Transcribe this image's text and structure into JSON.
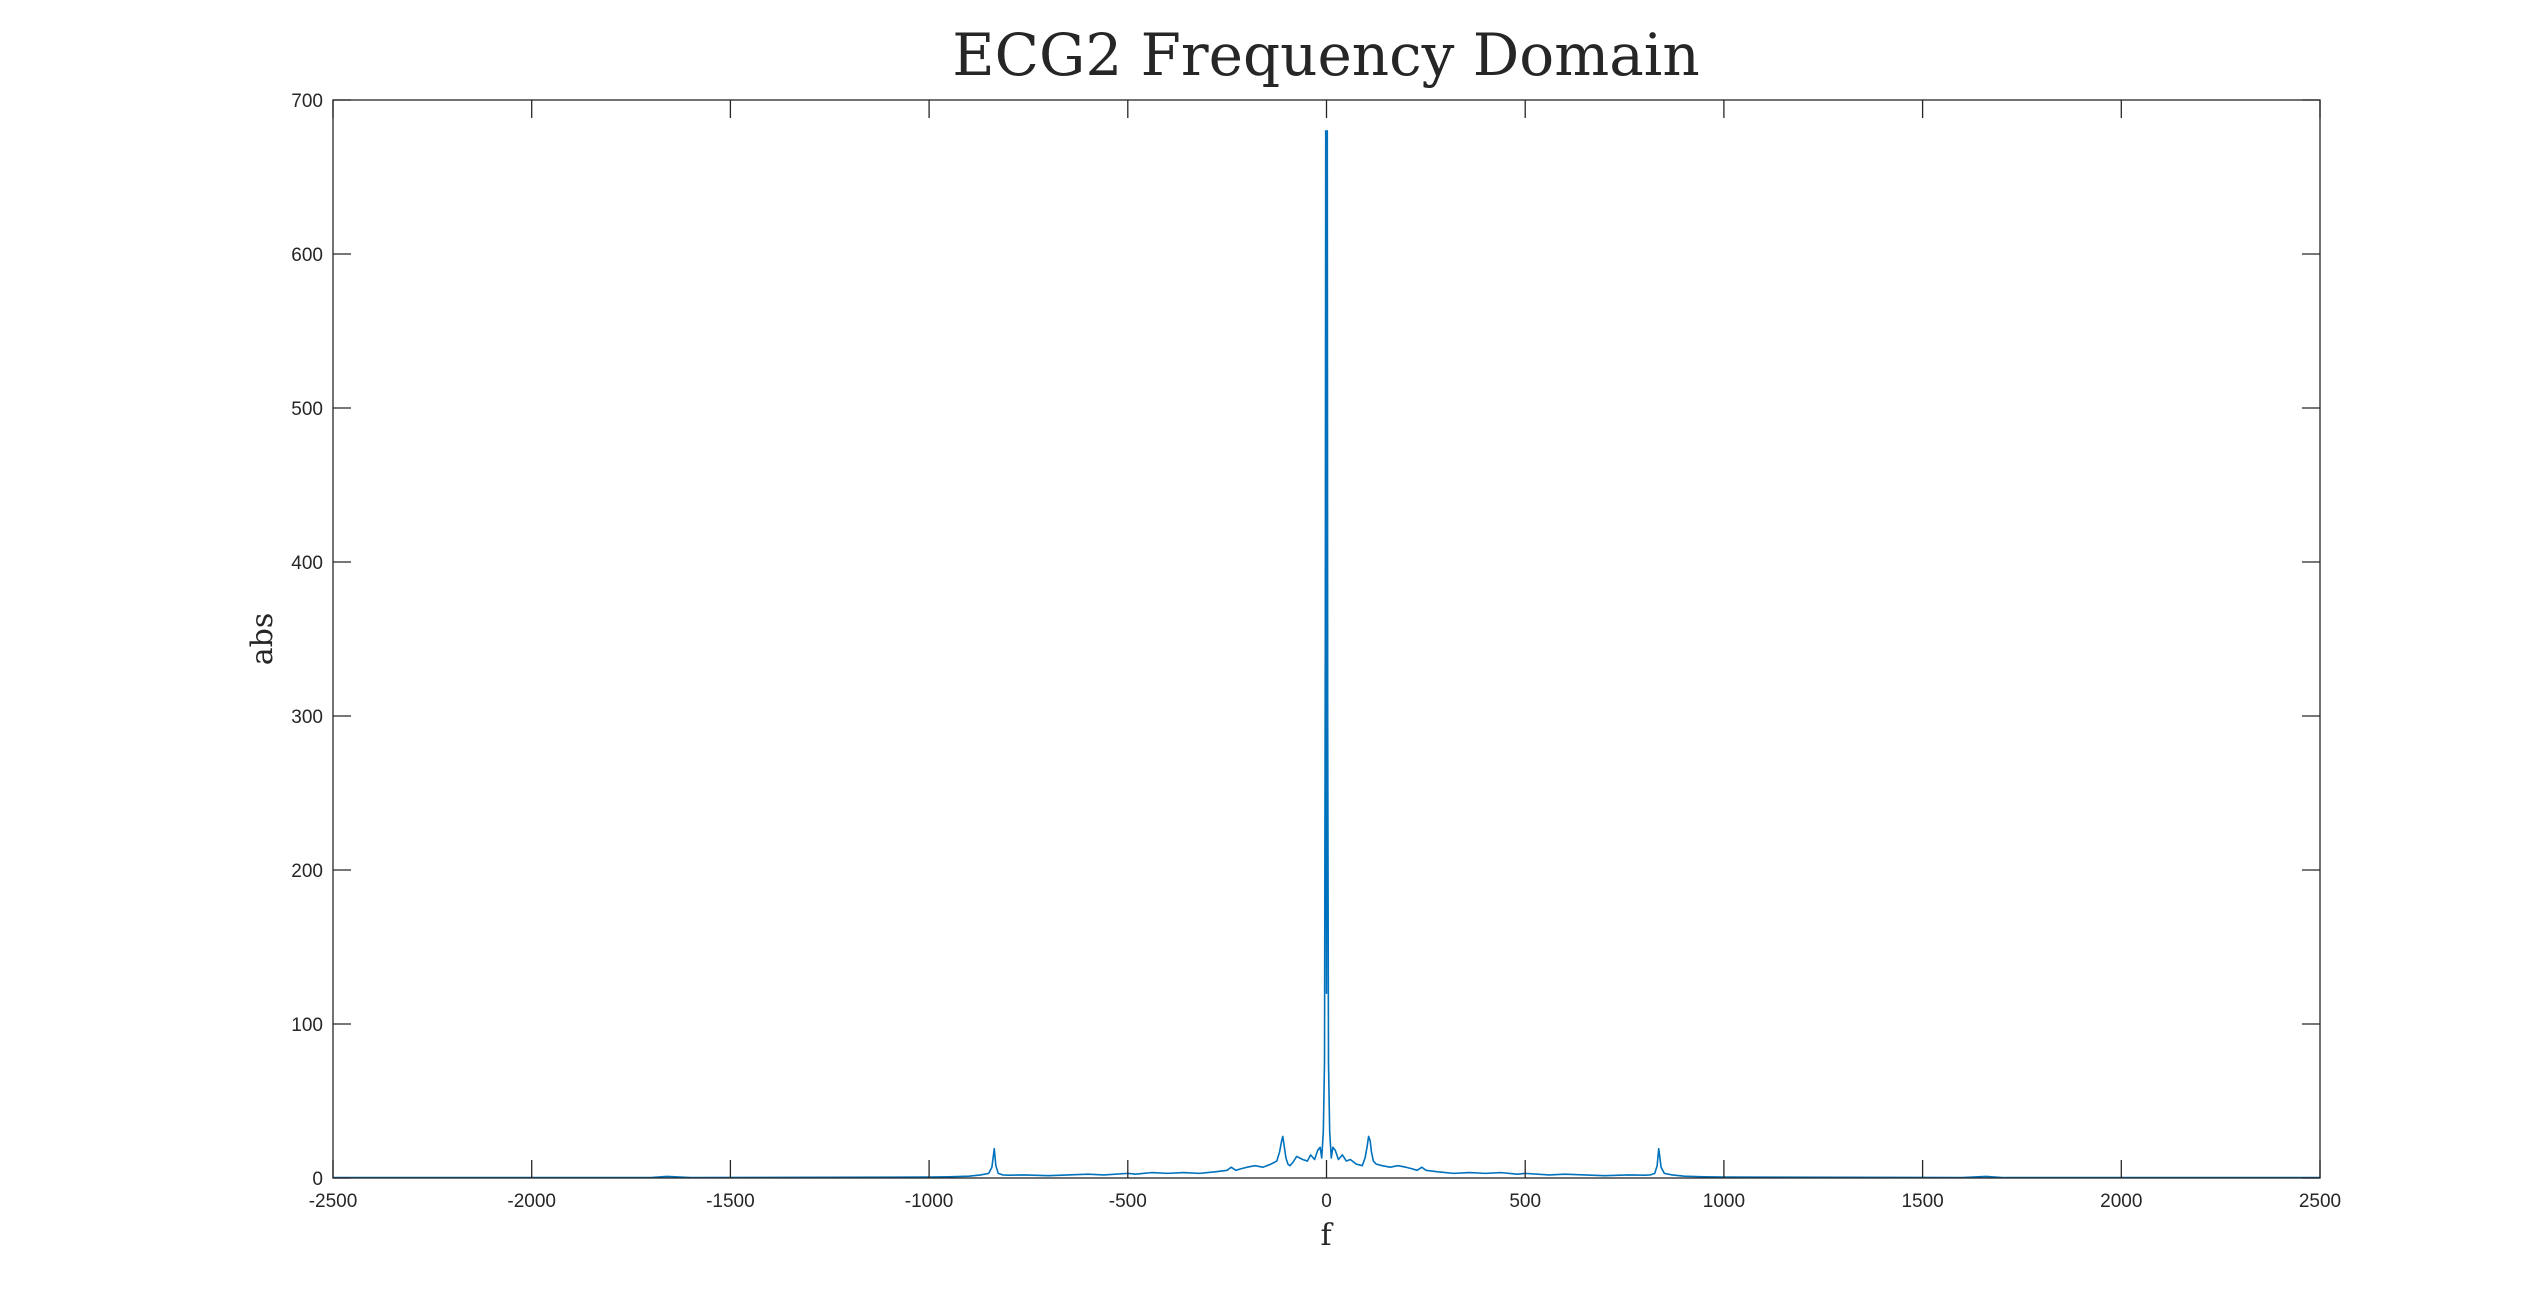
{
  "chart_data": {
    "type": "line",
    "title": "ECG2 Frequency Domain",
    "xlabel": "f",
    "ylabel": "abs",
    "xlim": [
      -2500,
      2500
    ],
    "ylim": [
      0,
      700
    ],
    "xticks": [
      -2500,
      -2000,
      -1500,
      -1000,
      -500,
      0,
      500,
      1000,
      1500,
      2000,
      2500
    ],
    "yticks": [
      0,
      100,
      200,
      300,
      400,
      500,
      600,
      700
    ],
    "grid": false,
    "color": "#0072BD",
    "series": [
      {
        "x": [
          -2500,
          -1700,
          -1660,
          -1600,
          -1000,
          -950,
          -900,
          -870,
          -850,
          -842,
          -836,
          -832,
          -826,
          -815,
          -800,
          -760,
          -700,
          -650,
          -600,
          -560,
          -500,
          -480,
          -440,
          -400,
          -360,
          -320,
          -280,
          -250,
          -240,
          -228,
          -215,
          -200,
          -180,
          -160,
          -140,
          -125,
          -118,
          -113,
          -110,
          -106,
          -102,
          -97,
          -92,
          -85,
          -75,
          -60,
          -48,
          -40,
          -30,
          -22,
          -16,
          -12,
          -8,
          -5,
          -3,
          -2,
          -1,
          0,
          1,
          2,
          3,
          5,
          8,
          12,
          16,
          22,
          30,
          40,
          50,
          60,
          75,
          90,
          97,
          102,
          106,
          110,
          113,
          118,
          125,
          140,
          160,
          180,
          200,
          215,
          228,
          240,
          250,
          280,
          320,
          360,
          400,
          440,
          480,
          500,
          560,
          600,
          650,
          700,
          760,
          800,
          815,
          826,
          832,
          836,
          842,
          850,
          870,
          900,
          950,
          1000,
          1600,
          1660,
          1700,
          2500
        ],
        "y": [
          0.3,
          0.3,
          1,
          0.3,
          0.6,
          0.8,
          1.2,
          2,
          3,
          7,
          19,
          8,
          3,
          2,
          1.8,
          2,
          1.5,
          2,
          2.5,
          2,
          3,
          2.5,
          3.5,
          3,
          3.5,
          3,
          4,
          5,
          7,
          5,
          6,
          7,
          8,
          7,
          9,
          11,
          17,
          24,
          27,
          20,
          13,
          9,
          8,
          10,
          14,
          12,
          11,
          15,
          12,
          18,
          20,
          13,
          30,
          75,
          360,
          680,
          300,
          120,
          360,
          680,
          300,
          75,
          30,
          13,
          20,
          18,
          12,
          15,
          11,
          12,
          9,
          8,
          13,
          20,
          27,
          24,
          17,
          11,
          9,
          8,
          7,
          8,
          7,
          6,
          5,
          7,
          5,
          4,
          3,
          3.5,
          3,
          3.5,
          2.5,
          3,
          2,
          2.5,
          2,
          1.5,
          2,
          1.8,
          2,
          3,
          8,
          19,
          7,
          3,
          2,
          1.2,
          0.8,
          0.6,
          0.3,
          1,
          0.3,
          0.3
        ]
      }
    ]
  }
}
